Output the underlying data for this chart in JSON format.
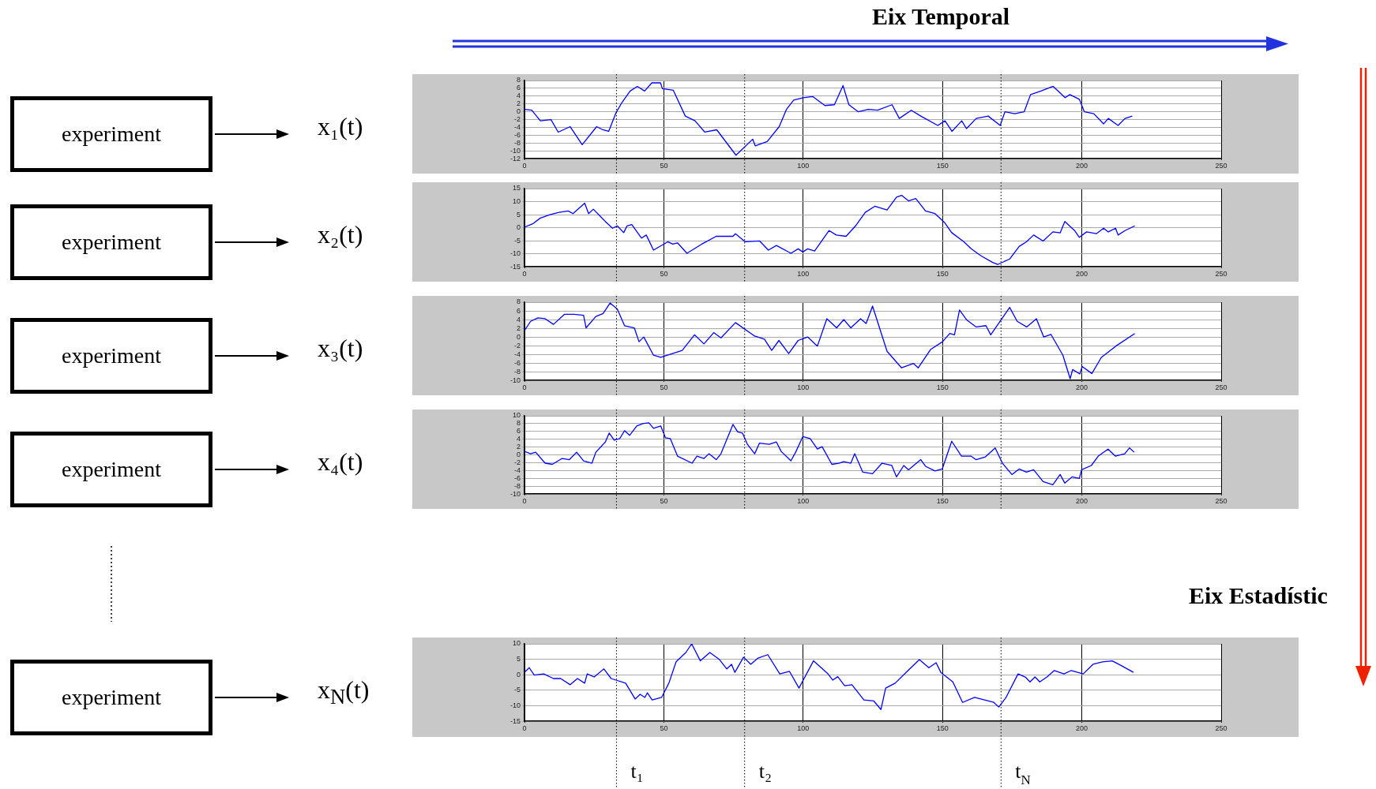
{
  "chart_data": [
    {
      "type": "line",
      "title": "Eix Temporal",
      "ylabel": "x₁(t)",
      "annotations": [
        "experiment"
      ],
      "color": "#0000ff",
      "marker": "none",
      "line_style": "solid",
      "grid": true,
      "xlim": [
        0,
        250
      ],
      "xticks": [
        0,
        50,
        100,
        150,
        200,
        250
      ],
      "ylim": [
        -12,
        8
      ],
      "yticks": [
        -12,
        -10,
        -8,
        -6,
        -4,
        -2,
        0,
        2,
        4,
        6,
        8
      ],
      "ref_lines": [
        {
          "axis": "x",
          "value": 33,
          "color": "#000000",
          "line_style": "dotted"
        },
        {
          "axis": "x",
          "value": 79,
          "color": "#000000",
          "line_style": "dotted"
        },
        {
          "axis": "x",
          "value": 171,
          "color": "#000000",
          "line_style": "dotted"
        }
      ],
      "x": [
        0,
        2.6,
        5.7,
        9.5,
        12.1,
        16.4,
        20.7,
        25.9,
        28.1,
        30.2,
        32.8,
        35,
        37.9,
        40.5,
        43.1,
        45.7,
        48.8,
        49.5,
        53.4,
        57.7,
        61.2,
        64.7,
        69,
        75.9,
        81.9,
        82.8,
        87.1,
        91.4,
        94,
        96.6,
        100,
        103.4,
        107.8,
        111.2,
        114.3,
        116.4,
        119.8,
        123.3,
        126.7,
        131.9,
        134.5,
        138.8,
        142.2,
        148.3,
        150.9,
        153.4,
        156.9,
        158.6,
        162.1,
        166.4,
        170.7,
        172.4,
        175.9,
        179.3,
        181.6,
        185.3,
        189.7,
        194,
        195.7,
        199.1,
        200.9,
        204.3,
        207.8,
        209.5,
        213,
        215.5,
        218.1
      ],
      "values": [
        0.6,
        0.4,
        -2.3,
        -2,
        -5.2,
        -3.8,
        -8.4,
        -3.8,
        -4.6,
        -5,
        -0.3,
        2.4,
        5.3,
        6.5,
        5.3,
        7.4,
        7.4,
        5.9,
        5.5,
        -1.1,
        -2.3,
        -5.2,
        -4.6,
        -11.1,
        -7,
        -8.7,
        -7.6,
        -3.8,
        0.6,
        3,
        3.6,
        3.9,
        1.6,
        1.8,
        6.7,
        1.8,
        0,
        0.6,
        0.4,
        1.8,
        -1.7,
        0.4,
        -1.1,
        -3.5,
        -2.3,
        -5,
        -2.3,
        -4.3,
        -1.7,
        -1.1,
        -3.5,
        0,
        -0.5,
        0,
        4.4,
        5.3,
        6.5,
        3.6,
        4.4,
        3.2,
        0,
        -0.5,
        -3.1,
        -1.7,
        -3.5,
        -1.7,
        -1.1
      ]
    },
    {
      "type": "line",
      "ylabel": "x₂(t)",
      "annotations": [
        "experiment"
      ],
      "color": "#0000ff",
      "marker": "none",
      "line_style": "solid",
      "grid": true,
      "xlim": [
        0,
        250
      ],
      "xticks": [
        0,
        50,
        100,
        150,
        200,
        250
      ],
      "ylim": [
        -15,
        15
      ],
      "yticks": [
        -15,
        -10,
        -5,
        0,
        5,
        10,
        15
      ],
      "ref_lines": [
        {
          "axis": "x",
          "value": 33,
          "color": "#000000",
          "line_style": "dotted"
        },
        {
          "axis": "x",
          "value": 79,
          "color": "#000000",
          "line_style": "dotted"
        },
        {
          "axis": "x",
          "value": 171,
          "color": "#000000",
          "line_style": "dotted"
        }
      ],
      "x": [
        0,
        3.1,
        5.7,
        9.1,
        12.4,
        15.7,
        17.4,
        21.6,
        23,
        24.7,
        29,
        31.6,
        33.3,
        35.6,
        36.8,
        38.5,
        42,
        43.7,
        46.3,
        51.4,
        53.2,
        54.9,
        58.3,
        63.6,
        68.8,
        74.8,
        75.7,
        79.2,
        84.4,
        87.5,
        90.4,
        95.6,
        98.2,
        99.9,
        101.6,
        104.1,
        109.3,
        111.9,
        115.4,
        118.8,
        122.3,
        125.7,
        130.1,
        133.5,
        135.3,
        137.8,
        140.4,
        143.9,
        147.3,
        150.8,
        153.3,
        157.7,
        160.2,
        163.7,
        168,
        169.8,
        174.1,
        177.5,
        180.1,
        182.7,
        186.1,
        189.6,
        192.2,
        193.9,
        197.4,
        199.1,
        201.7,
        205.2,
        207.8,
        209.5,
        212.1,
        213,
        215.5,
        219
      ],
      "values": [
        0.2,
        1.6,
        3.7,
        5,
        5.9,
        6.4,
        5.4,
        9.4,
        5.4,
        7.1,
        2.4,
        -0.2,
        0.7,
        -1.9,
        0.7,
        1.2,
        -4,
        -2.8,
        -8.6,
        -5.4,
        -6.3,
        -5.8,
        -9.8,
        -6.3,
        -3.3,
        -3.3,
        -2.3,
        -5.4,
        -5.1,
        -8.6,
        -6.8,
        -9.8,
        -8.1,
        -9.3,
        -8.1,
        -8.9,
        -1.1,
        -2.8,
        -3.3,
        0.7,
        5.9,
        8.2,
        6.8,
        11.7,
        12.4,
        10.3,
        11.2,
        6.4,
        5.4,
        1.9,
        -1.9,
        -5.4,
        -8,
        -10.7,
        -13.3,
        -14.1,
        -12,
        -7.2,
        -5.4,
        -2.8,
        -5.1,
        -1.6,
        -2,
        2.4,
        -1.1,
        -3.7,
        -1.6,
        -2.3,
        -0.2,
        -1.6,
        -0.2,
        -2.8,
        -1.1,
        0.7
      ]
    },
    {
      "type": "line",
      "ylabel": "x₃(t)",
      "annotations": [
        "experiment"
      ],
      "color": "#0000ff",
      "marker": "none",
      "line_style": "solid",
      "grid": true,
      "xlim": [
        0,
        250
      ],
      "xticks": [
        0,
        50,
        100,
        150,
        200,
        250
      ],
      "ylim": [
        -10,
        8
      ],
      "yticks": [
        -10,
        -8,
        -6,
        -4,
        -2,
        0,
        2,
        4,
        6,
        8
      ],
      "ref_lines": [
        {
          "axis": "x",
          "value": 33,
          "color": "#000000",
          "line_style": "dotted"
        },
        {
          "axis": "x",
          "value": 79,
          "color": "#000000",
          "line_style": "dotted"
        },
        {
          "axis": "x",
          "value": 171,
          "color": "#000000",
          "line_style": "dotted"
        }
      ],
      "x": [
        0,
        2.2,
        4.8,
        7.4,
        10.4,
        14.3,
        17.8,
        21.2,
        22.1,
        25.6,
        28.2,
        30.7,
        33.3,
        35.9,
        39.4,
        41.1,
        42.8,
        46.3,
        48.9,
        56.6,
        61,
        64.4,
        67.9,
        70.5,
        75.7,
        82.6,
        86.1,
        88.7,
        91.3,
        94.8,
        98.2,
        101.6,
        105.1,
        108.5,
        112,
        114.6,
        117.1,
        120.6,
        122.6,
        124.9,
        130.1,
        135.3,
        139.6,
        141.3,
        145.7,
        150,
        152.6,
        154.3,
        156.1,
        158.7,
        162.1,
        165.6,
        167.3,
        169.9,
        174.1,
        176.8,
        180.2,
        183.7,
        186.3,
        188.9,
        193.2,
        195.8,
        196.7,
        199.3,
        200.1,
        203.6,
        207,
        212.2,
        219
      ],
      "values": [
        1.5,
        3.6,
        4.4,
        4.2,
        2.9,
        5.2,
        5.2,
        5,
        2.1,
        4.7,
        5.4,
        7.8,
        6.4,
        2.6,
        2.1,
        -1.1,
        0,
        -4.2,
        -4.7,
        -3.1,
        0.5,
        -1.6,
        1,
        -0.2,
        3.3,
        0.2,
        -0.5,
        -3.1,
        -0.8,
        -3.8,
        -0.8,
        0,
        -2.1,
        4.2,
        2.1,
        4,
        2.1,
        4.2,
        3.1,
        7.1,
        -3.3,
        -7.1,
        -6.1,
        -7.1,
        -2.9,
        -1.1,
        0.8,
        0.5,
        6.2,
        3.9,
        2.3,
        2.6,
        0.5,
        2.9,
        6.8,
        3.6,
        2.3,
        4.2,
        0,
        0.6,
        -4.2,
        -9.6,
        -7.5,
        -8.5,
        -6.8,
        -8.4,
        -4.7,
        -2.1,
        0.8
      ]
    },
    {
      "type": "line",
      "ylabel": "x₄(t)",
      "annotations": [
        "experiment"
      ],
      "color": "#0000ff",
      "marker": "none",
      "line_style": "solid",
      "grid": true,
      "xlim": [
        0,
        250
      ],
      "xticks": [
        0,
        50,
        100,
        150,
        200,
        250
      ],
      "ylim": [
        -10,
        10
      ],
      "yticks": [
        -10,
        -8,
        -6,
        -4,
        -2,
        0,
        2,
        4,
        6,
        8,
        10
      ],
      "ref_lines": [
        {
          "axis": "x",
          "value": 33,
          "color": "#000000",
          "line_style": "dotted"
        },
        {
          "axis": "x",
          "value": 79,
          "color": "#000000",
          "line_style": "dotted"
        },
        {
          "axis": "x",
          "value": 171,
          "color": "#000000",
          "line_style": "dotted"
        }
      ],
      "x": [
        0,
        2.2,
        4,
        7.4,
        10,
        13.5,
        16.1,
        18.7,
        21.2,
        24.2,
        25.6,
        29,
        30.4,
        32.2,
        34.2,
        35.9,
        37.7,
        40.3,
        42.5,
        44.6,
        46.3,
        48.9,
        50.6,
        52.3,
        54.9,
        60.1,
        61.9,
        64.4,
        66.2,
        68.8,
        70.5,
        74.8,
        76.5,
        78.2,
        80,
        82.6,
        84.3,
        87.8,
        90.4,
        92.1,
        95.6,
        97.3,
        99.9,
        102.5,
        105.1,
        106.8,
        110.3,
        112.8,
        114.6,
        117.1,
        118.5,
        121.4,
        124.9,
        128.3,
        131.8,
        133.5,
        136.1,
        137.8,
        142.2,
        143.9,
        147.3,
        149.9,
        153.3,
        156.8,
        160.2,
        162,
        165.4,
        168.9,
        171.5,
        174.9,
        177.5,
        180.1,
        182.7,
        186.1,
        189.6,
        192.2,
        193.9,
        196.5,
        199.1,
        199.9,
        203.4,
        205.9,
        209.4,
        212,
        215.4,
        217.1,
        218.8
      ],
      "values": [
        0.9,
        0.3,
        0.7,
        -2.1,
        -2.4,
        -0.9,
        -1.2,
        0.7,
        -1.5,
        -2.1,
        0.7,
        3.3,
        5.6,
        3.8,
        4.2,
        6.2,
        5,
        7.4,
        8,
        8.2,
        6.8,
        7.4,
        4.4,
        4.2,
        -0.3,
        -2.1,
        -0.3,
        -0.9,
        0.3,
        -1.2,
        0.3,
        7.8,
        5.9,
        5.6,
        2.7,
        0.3,
        3,
        2.7,
        3.3,
        0.9,
        -1.5,
        0.7,
        4.7,
        4.2,
        1.5,
        2.1,
        -2.4,
        -2.1,
        -1.7,
        -2.1,
        0.3,
        -4.4,
        -4.8,
        -2.1,
        -2.7,
        -5.6,
        -2.7,
        -3.8,
        -1.2,
        -2.9,
        -4.1,
        -3.6,
        3.5,
        -0.3,
        -0.3,
        -1.2,
        -0.5,
        1.8,
        -2.1,
        -5,
        -3.6,
        -4.4,
        -3.8,
        -6.8,
        -7.6,
        -5,
        -7.2,
        -5.6,
        -6,
        -3.8,
        -2.7,
        -0.3,
        1.5,
        -0.3,
        0.3,
        1.8,
        0.7
      ]
    },
    {
      "type": "line",
      "ylabel": "x$_{N}$(t)",
      "annotations": [
        "experiment",
        "Eix Estadístic"
      ],
      "color": "#0000ff",
      "marker": "none",
      "line_style": "solid",
      "grid": true,
      "xlim": [
        0,
        250
      ],
      "xticks": [
        0,
        50,
        100,
        150,
        200,
        250
      ],
      "ylim": [
        -15,
        10
      ],
      "yticks": [
        -15,
        -10,
        -5,
        0,
        5,
        10
      ],
      "ref_lines": [
        {
          "axis": "x",
          "value": 33,
          "label": "t₁",
          "color": "#000000",
          "line_style": "dotted"
        },
        {
          "axis": "x",
          "value": 79,
          "label": "t₂",
          "color": "#000000",
          "line_style": "dotted"
        },
        {
          "axis": "x",
          "value": 171,
          "label": "t$_{N}$",
          "color": "#000000",
          "line_style": "dotted"
        }
      ],
      "x": [
        0,
        1.7,
        3.5,
        6.9,
        10.4,
        13,
        16.4,
        19,
        21.6,
        22.5,
        25,
        28.5,
        31.1,
        36.3,
        39.7,
        41.5,
        43.2,
        44.1,
        45.8,
        49.2,
        51.8,
        54.4,
        57.9,
        60,
        63.1,
        66.5,
        70,
        72.6,
        74.3,
        75.5,
        78.6,
        81.2,
        83.8,
        87.3,
        91.6,
        95.1,
        98.5,
        103.7,
        108.9,
        110.6,
        112.4,
        114.9,
        117.5,
        121.8,
        125.3,
        127.9,
        129.6,
        133,
        137.3,
        141.7,
        145.1,
        147.7,
        149.4,
        153.7,
        157.2,
        161.5,
        168.4,
        170.2,
        172.8,
        177.1,
        179.7,
        181.4,
        183.2,
        184.9,
        187.5,
        190.1,
        193.6,
        196.2,
        200.5,
        204,
        207.4,
        210.9,
        214.3,
        218.5
      ],
      "values": [
        0.8,
        2.3,
        -0.1,
        0.3,
        -1.2,
        -1.2,
        -3.2,
        -1.2,
        -2.7,
        0.3,
        -0.7,
        1.9,
        -1.2,
        -2.7,
        -7.8,
        -6.3,
        -7.3,
        -5.8,
        -8.1,
        -7.3,
        -2.7,
        4.2,
        7.2,
        10,
        4.5,
        7.2,
        4.9,
        1.9,
        3.4,
        0.8,
        5.7,
        3.4,
        5.4,
        6.5,
        0.3,
        1.1,
        -4.3,
        4.5,
        0.3,
        -1.7,
        -0.6,
        -3.5,
        -3.2,
        -8.1,
        -8.4,
        -11.2,
        -4.3,
        -2.7,
        1.1,
        4.9,
        2.3,
        3.9,
        0.8,
        -2.3,
        -8.9,
        -7.3,
        -8.9,
        -10.4,
        -7.3,
        0.3,
        -0.7,
        -2.3,
        -0.7,
        -2.3,
        -0.7,
        1.4,
        0.3,
        1.4,
        0.3,
        3.4,
        4.2,
        4.5,
        2.9,
        0.8
      ]
    }
  ]
}
